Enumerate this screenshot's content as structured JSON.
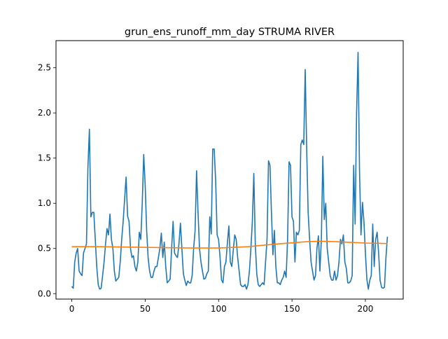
{
  "chart_data": {
    "type": "line",
    "title": "grun_ens_runoff_mm_day STRUMA RIVER",
    "xlabel": "",
    "ylabel": "",
    "xlim": [
      -10.75,
      225.75
    ],
    "ylim": [
      -0.06,
      2.8
    ],
    "xticks": [
      0,
      50,
      100,
      150,
      200
    ],
    "yticks": [
      0.0,
      0.5,
      1.0,
      1.5,
      2.0,
      2.5
    ],
    "xtick_labels": [
      "0",
      "50",
      "100",
      "150",
      "200"
    ],
    "ytick_labels": [
      "0.0",
      "0.5",
      "1.0",
      "1.5",
      "2.0",
      "2.5"
    ],
    "grid": false,
    "series": [
      {
        "color": "#1f77b4",
        "x": [
          0,
          1,
          2,
          3,
          4,
          5,
          6,
          7,
          8,
          9,
          10,
          11,
          12,
          13,
          14,
          15,
          16,
          17,
          18,
          19,
          20,
          21,
          22,
          23,
          24,
          25,
          26,
          27,
          28,
          29,
          30,
          31,
          32,
          33,
          34,
          35,
          36,
          37,
          38,
          39,
          40,
          41,
          42,
          43,
          44,
          45,
          46,
          47,
          48,
          49,
          50,
          51,
          52,
          53,
          54,
          55,
          56,
          57,
          58,
          59,
          60,
          61,
          62,
          63,
          64,
          65,
          66,
          67,
          68,
          69,
          70,
          71,
          72,
          73,
          74,
          75,
          76,
          77,
          78,
          79,
          80,
          81,
          82,
          83,
          84,
          85,
          86,
          87,
          88,
          89,
          90,
          91,
          92,
          93,
          94,
          95,
          96,
          97,
          98,
          99,
          100,
          101,
          102,
          103,
          104,
          105,
          106,
          107,
          108,
          109,
          110,
          111,
          112,
          113,
          114,
          115,
          116,
          117,
          118,
          119,
          120,
          121,
          122,
          123,
          124,
          125,
          126,
          127,
          128,
          129,
          130,
          131,
          132,
          133,
          134,
          135,
          136,
          137,
          138,
          139,
          140,
          141,
          142,
          143,
          144,
          145,
          146,
          147,
          148,
          149,
          150,
          151,
          152,
          153,
          154,
          155,
          156,
          157,
          158,
          159,
          160,
          161,
          162,
          163,
          164,
          165,
          166,
          167,
          168,
          169,
          170,
          171,
          172,
          173,
          174,
          175,
          176,
          177,
          178,
          179,
          180,
          181,
          182,
          183,
          184,
          185,
          186,
          187,
          188,
          189,
          190,
          191,
          192,
          193,
          194,
          195,
          196,
          197,
          198,
          199,
          200,
          201,
          202,
          203,
          204,
          205,
          206,
          207,
          208,
          209,
          210,
          211,
          212,
          213,
          214,
          215
        ],
        "y": [
          0.08,
          0.06,
          0.35,
          0.45,
          0.5,
          0.25,
          0.22,
          0.2,
          0.45,
          0.5,
          0.55,
          1.4,
          1.82,
          0.85,
          0.9,
          0.9,
          0.6,
          0.3,
          0.1,
          0.05,
          0.06,
          0.2,
          0.35,
          0.55,
          0.72,
          0.65,
          0.88,
          0.6,
          0.5,
          0.25,
          0.14,
          0.16,
          0.18,
          0.35,
          0.6,
          0.8,
          1.05,
          1.29,
          0.86,
          0.8,
          0.5,
          0.4,
          0.42,
          0.3,
          0.25,
          0.35,
          0.68,
          0.6,
          1.0,
          1.54,
          1.2,
          0.7,
          0.4,
          0.25,
          0.18,
          0.18,
          0.25,
          0.3,
          0.3,
          0.4,
          0.5,
          0.67,
          0.4,
          0.57,
          0.3,
          0.12,
          0.14,
          0.16,
          0.5,
          0.8,
          0.45,
          0.42,
          0.4,
          0.55,
          0.78,
          0.5,
          0.22,
          0.15,
          0.09,
          0.14,
          0.12,
          0.12,
          0.2,
          0.5,
          0.7,
          1.36,
          0.9,
          0.5,
          0.35,
          0.25,
          0.16,
          0.17,
          0.22,
          0.25,
          0.85,
          0.66,
          1.6,
          1.6,
          1.25,
          0.65,
          0.6,
          0.4,
          0.15,
          0.12,
          0.3,
          0.35,
          0.56,
          0.75,
          0.35,
          0.3,
          0.48,
          0.65,
          0.6,
          0.4,
          0.25,
          0.1,
          0.08,
          0.08,
          0.1,
          0.05,
          0.1,
          0.25,
          0.5,
          0.8,
          1.33,
          0.55,
          0.22,
          0.1,
          0.08,
          0.1,
          0.12,
          0.1,
          0.35,
          0.6,
          1.47,
          1.42,
          0.9,
          0.43,
          0.7,
          0.3,
          0.12,
          0.12,
          0.1,
          0.15,
          0.18,
          0.25,
          0.18,
          0.6,
          1.46,
          1.42,
          0.85,
          0.8,
          0.35,
          0.68,
          0.65,
          0.7,
          1.65,
          1.7,
          1.65,
          2.48,
          1.6,
          0.9,
          0.6,
          0.35,
          0.25,
          0.15,
          0.2,
          0.5,
          0.64,
          0.25,
          0.6,
          1.52,
          0.82,
          1.0,
          0.5,
          0.35,
          0.2,
          0.15,
          0.15,
          0.25,
          0.15,
          0.2,
          0.35,
          0.6,
          0.55,
          0.65,
          0.35,
          0.28,
          0.12,
          0.12,
          0.14,
          0.2,
          1.42,
          0.77,
          2.0,
          2.67,
          1.35,
          0.65,
          1.01,
          0.8,
          0.45,
          0.16,
          0.05,
          0.15,
          0.2,
          0.77,
          0.3,
          0.6,
          0.68,
          0.45,
          0.15,
          0.07,
          0.06,
          0.07,
          0.4,
          0.63
        ]
      },
      {
        "color": "#ff7f0e",
        "x": [
          0,
          20,
          40,
          60,
          80,
          100,
          120,
          140,
          160,
          170,
          180,
          200,
          215
        ],
        "y": [
          0.52,
          0.52,
          0.515,
          0.51,
          0.505,
          0.505,
          0.52,
          0.55,
          0.575,
          0.58,
          0.575,
          0.56,
          0.555
        ]
      }
    ]
  }
}
